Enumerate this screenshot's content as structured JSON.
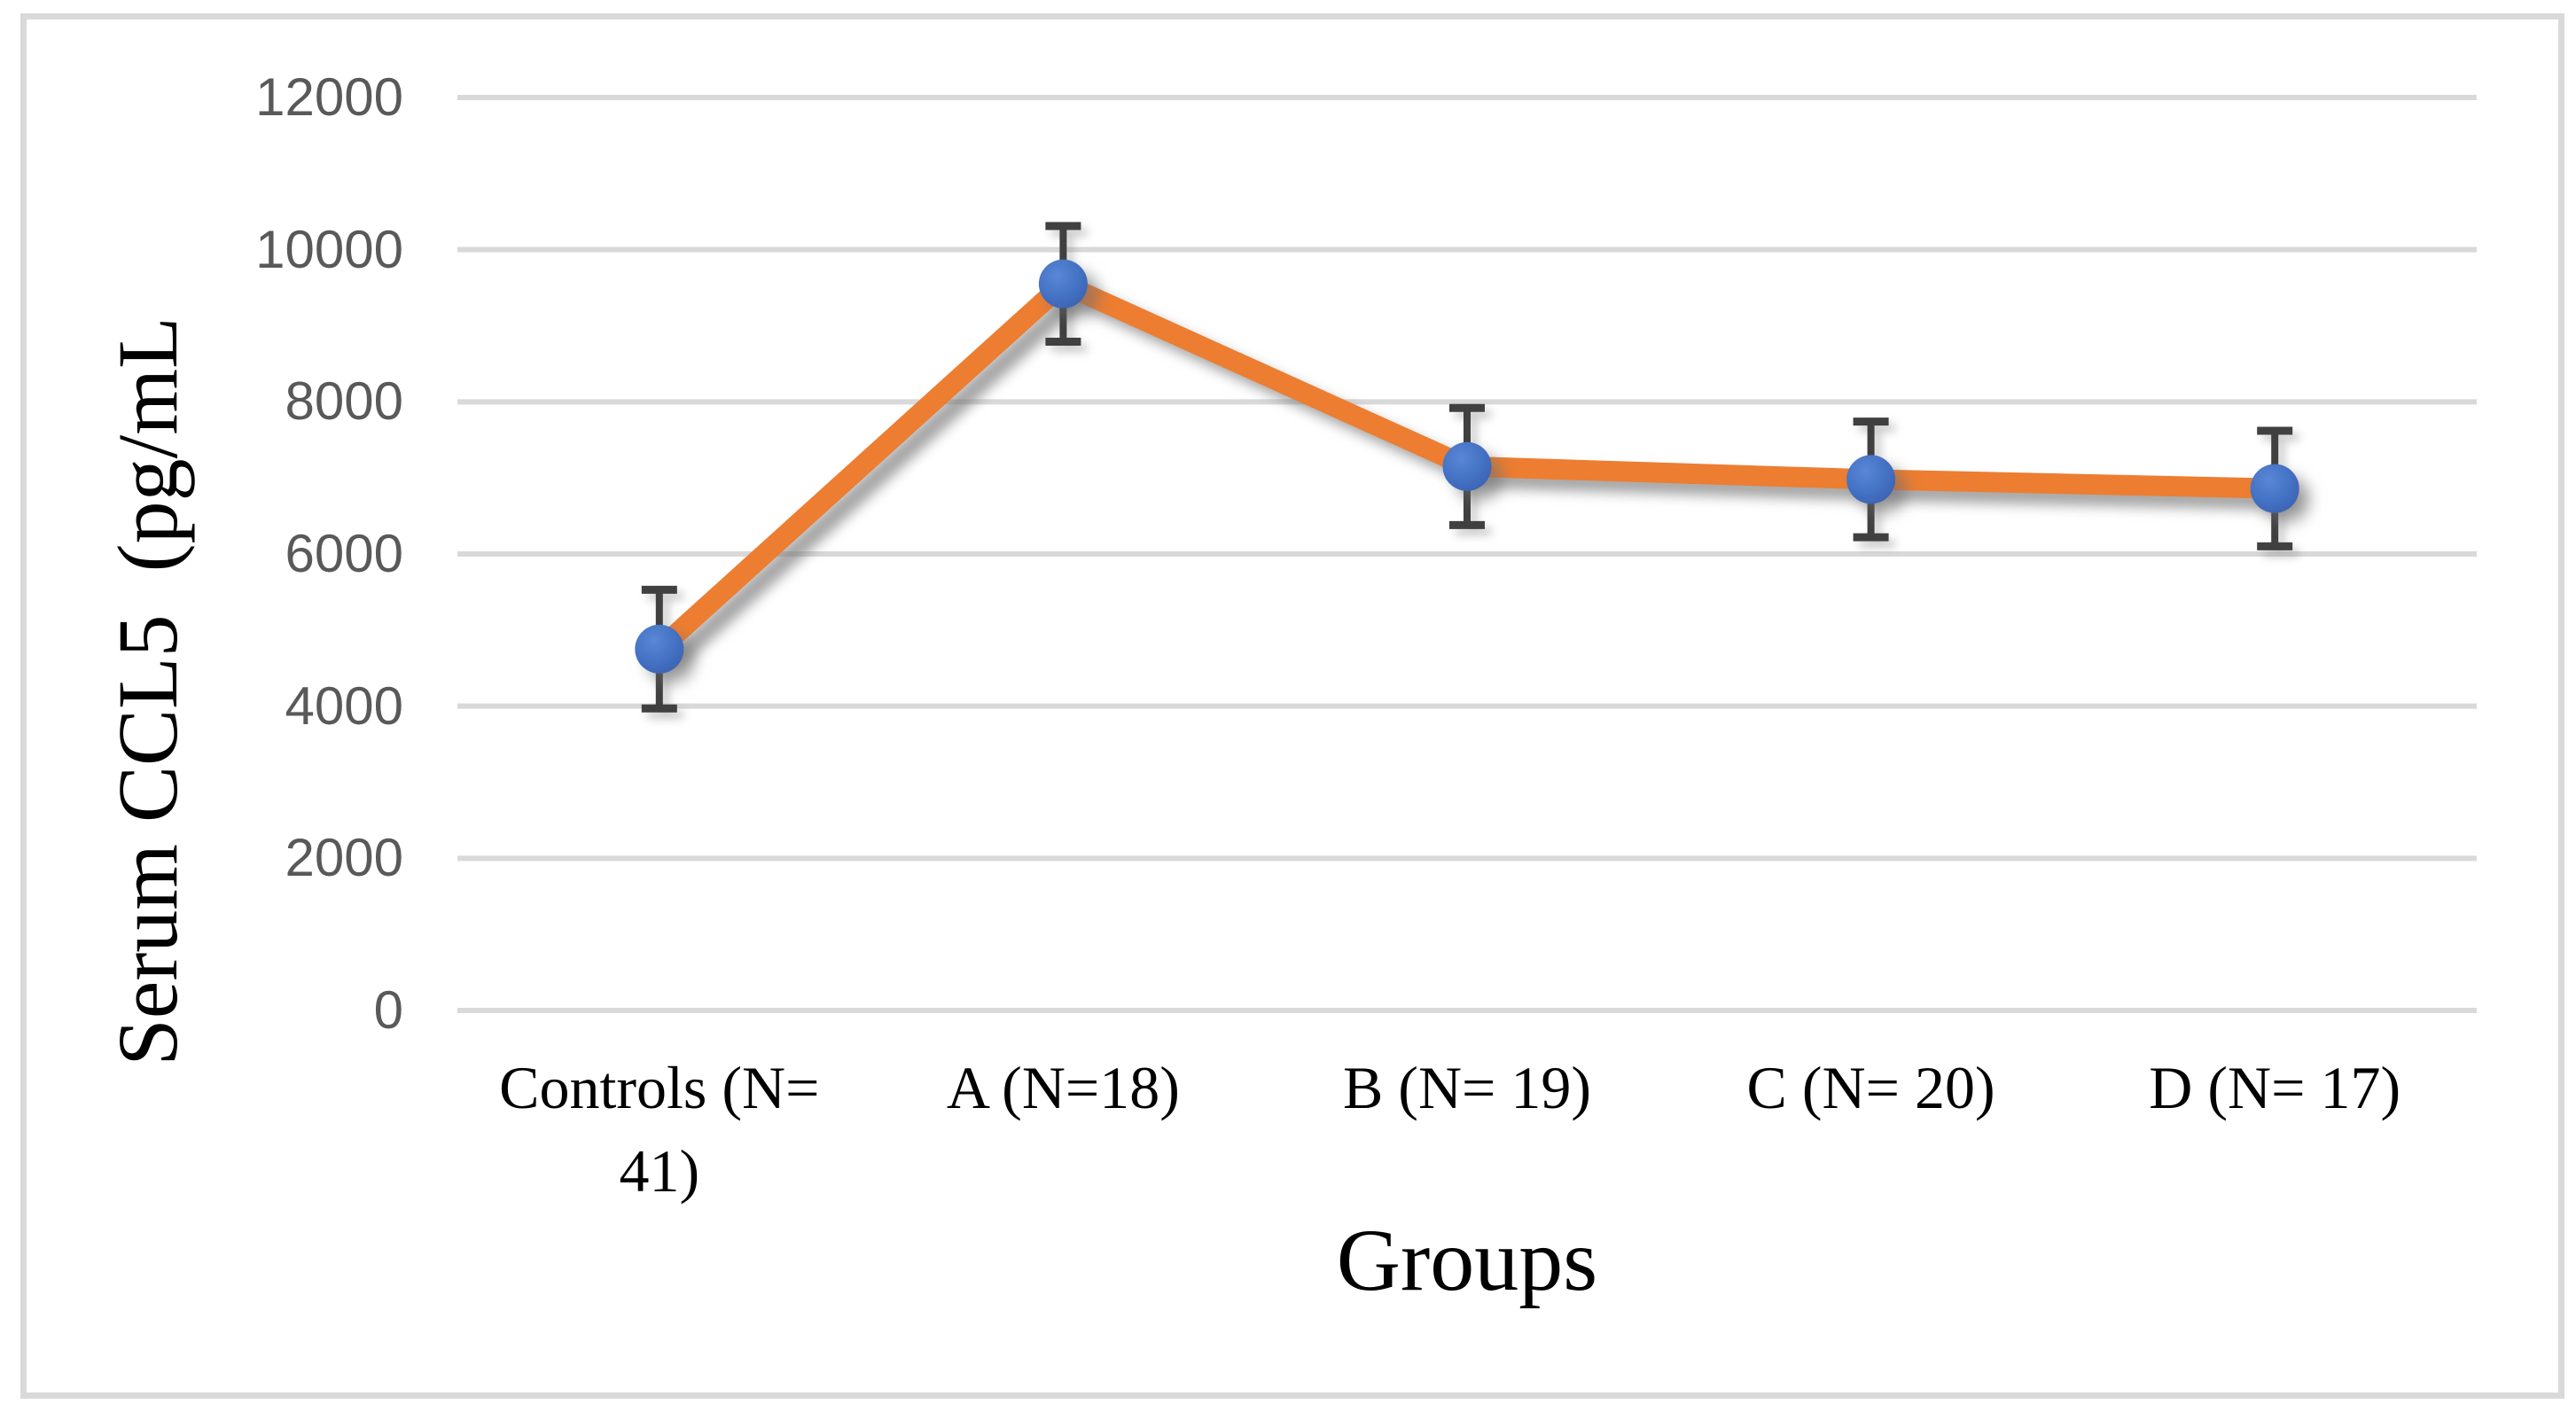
{
  "figure": {
    "background": "#FFFFFF",
    "frame_border_color": "#D9D9D9"
  },
  "chart_data": {
    "type": "line",
    "title": "",
    "xlabel": "Groups",
    "ylabel": "Serum CCL5  (pg/mL",
    "categories": [
      "Controls (N= 41)",
      "A (N=18)",
      "B (N= 19)",
      "C (N= 20)",
      "D (N= 17)"
    ],
    "series": [
      {
        "name": "Serum CCL5",
        "values": [
          4750,
          9550,
          7150,
          6980,
          6860
        ],
        "error_plus": [
          780,
          760,
          770,
          760,
          760
        ],
        "error_minus": [
          780,
          760,
          770,
          760,
          760
        ]
      }
    ],
    "ylim": [
      0,
      12000
    ],
    "yticks": [
      0,
      2000,
      4000,
      6000,
      8000,
      10000,
      12000
    ],
    "grid": true,
    "legend": false,
    "layout_hints": {
      "legend_position": "none",
      "marker": "circle",
      "error_bars": "both-ends-with-caps",
      "line_has_drop_shadow": true
    },
    "colors": {
      "line": "#ED7D31",
      "marker": "#4472C4",
      "marker_edge": "#3A5FAE",
      "error_bar": "#404040",
      "gridline": "#D9D9D9",
      "tick_label": "#595959",
      "axis_text": "#000000"
    }
  }
}
